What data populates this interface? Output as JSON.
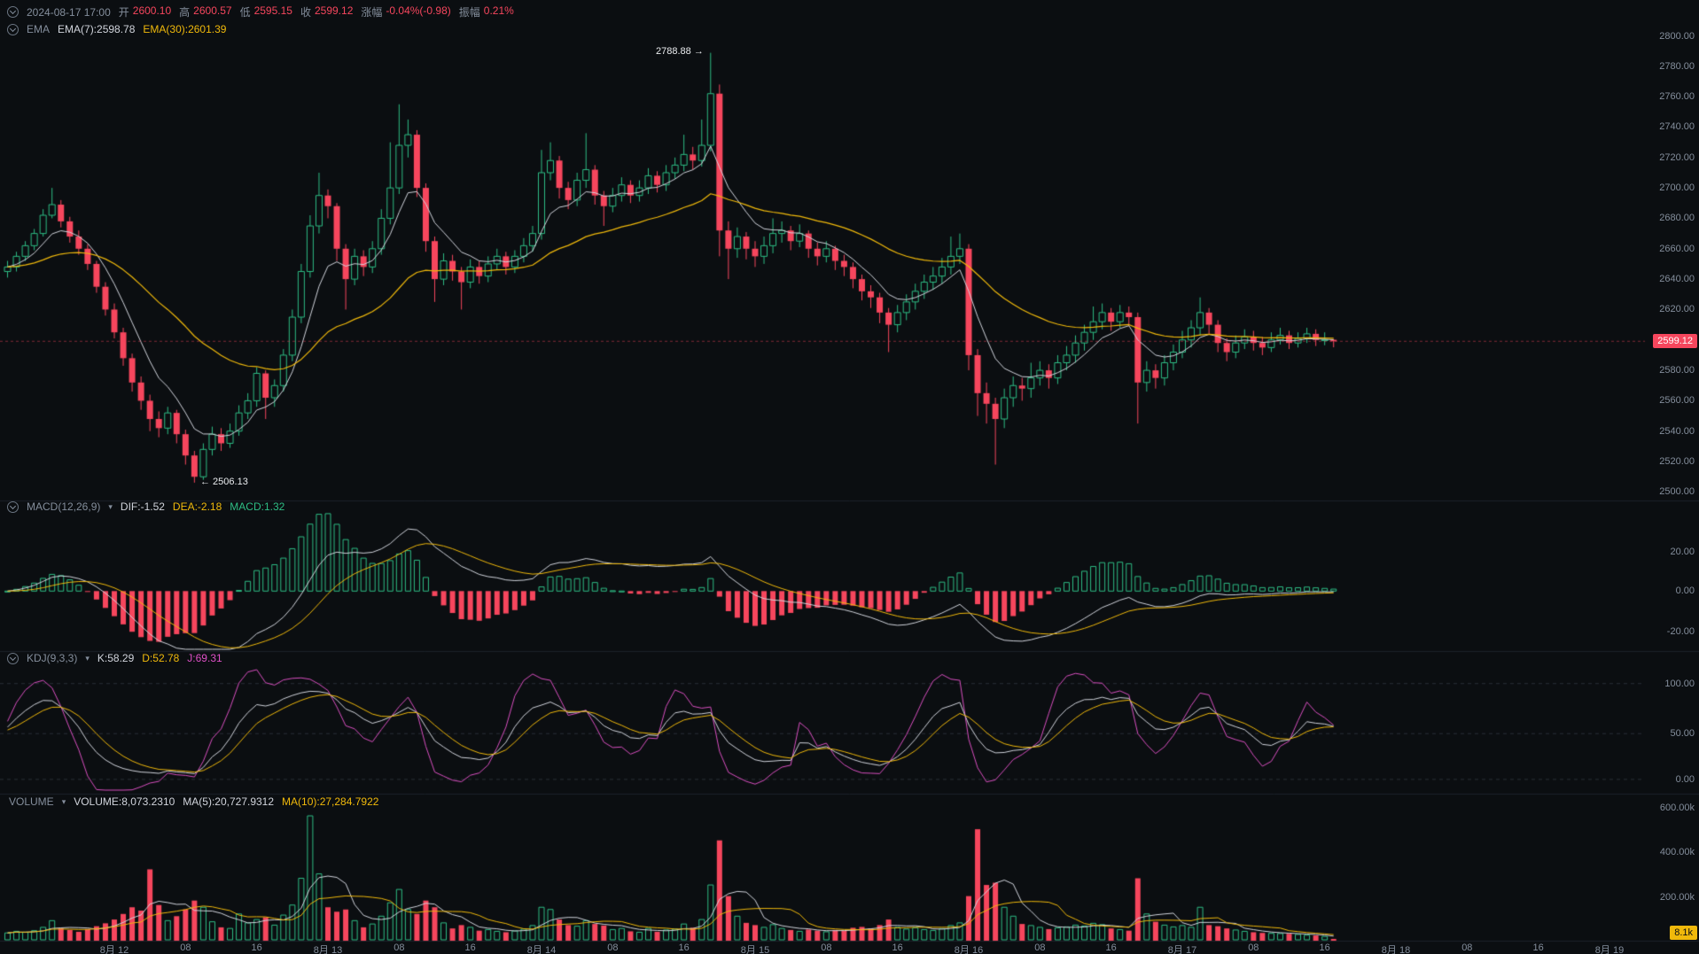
{
  "header": {
    "datetime": "2024-08-17 17:00",
    "open_label": "开",
    "open": "2600.10",
    "high_label": "高",
    "high": "2600.57",
    "low_label": "低",
    "low": "2595.15",
    "close_label": "收",
    "close": "2599.12",
    "change_label": "涨幅",
    "change": "-0.04%(-0.98)",
    "amplitude_label": "振幅",
    "amplitude": "0.21%",
    "ema_group_label": "EMA",
    "ema7": "EMA(7):2598.78",
    "ema30": "EMA(30):2601.39"
  },
  "panels": {
    "macd": {
      "name": "MACD(12,26,9)",
      "dif": "DIF:-1.52",
      "dea": "DEA:-2.18",
      "macd": "MACD:1.32"
    },
    "kdj": {
      "name": "KDJ(9,3,3)",
      "k": "K:58.29",
      "d": "D:52.78",
      "j": "J:69.31"
    },
    "volume": {
      "name": "VOLUME",
      "volume": "VOLUME:8,073.2310",
      "ma5": "MA(5):20,727.9312",
      "ma10": "MA(10):27,284.7922"
    }
  },
  "badges": {
    "last_price": "2599.12",
    "last_volume": "8.1k"
  },
  "annotations": {
    "high": "2788.88 →",
    "low": "← 2506.13"
  },
  "axes": {
    "price_labels": [
      "2800.00",
      "2780.00",
      "2760.00",
      "2740.00",
      "2720.00",
      "2700.00",
      "2680.00",
      "2660.00",
      "2640.00",
      "2620.00",
      "2600.00",
      "2580.00",
      "2560.00",
      "2540.00",
      "2520.00",
      "2500.00"
    ],
    "macd_labels": [
      "20.00",
      "0.00",
      "-20.00"
    ],
    "kdj_labels": [
      "100.00",
      "50.00",
      "0.00"
    ],
    "volume_labels": [
      "600.00k",
      "400.00k",
      "200.00k"
    ],
    "time_labels": [
      "8月 12",
      "08",
      "16",
      "8月 13",
      "08",
      "16",
      "8月 14",
      "08",
      "16",
      "8月 15",
      "08",
      "16",
      "8月 16",
      "08",
      "16",
      "8月 17",
      "08",
      "16",
      "8月 18",
      "08",
      "16",
      "8月 19"
    ]
  },
  "colors": {
    "background": "#0b0e11",
    "up": "#2ebd85",
    "down": "#f6465d",
    "ema7": "#d1d4dc",
    "ema30": "#f0b90b",
    "dif": "#d1d4dc",
    "dea": "#f0b90b",
    "k": "#d1d4dc",
    "d": "#f0b90b",
    "j": "#d94fc0",
    "vol_ma5": "#d1d4dc",
    "vol_ma10": "#f0b90b",
    "grid": "#2a3038",
    "divider": "#1c222a",
    "text_gray": "#848e9c",
    "badge_price_bg": "#f6465d",
    "badge_vol_bg": "#f0b90b"
  },
  "chart_data": {
    "type": "candlestick",
    "interval": "1h",
    "price_range": [
      2500,
      2800
    ],
    "macd_range": [
      -20,
      20
    ],
    "kdj_range": [
      0,
      100
    ],
    "volume_range": [
      0,
      600000
    ],
    "high_annotation": 2788.88,
    "low_annotation": 2506.13,
    "last_price": 2599.12,
    "indicators": {
      "ema": [
        7,
        30
      ],
      "macd": [
        12,
        26,
        9
      ],
      "kdj": [
        9,
        3,
        3
      ],
      "volume_ma": [
        5,
        10
      ]
    },
    "candles": [
      [
        2645,
        2652,
        2641,
        2648,
        35000
      ],
      [
        2648,
        2658,
        2645,
        2655,
        42000
      ],
      [
        2655,
        2665,
        2652,
        2662,
        38000
      ],
      [
        2662,
        2673,
        2659,
        2670,
        45000
      ],
      [
        2670,
        2686,
        2668,
        2682,
        60000
      ],
      [
        2682,
        2700,
        2680,
        2689,
        90000
      ],
      [
        2689,
        2692,
        2674,
        2678,
        55000
      ],
      [
        2678,
        2681,
        2664,
        2668,
        48000
      ],
      [
        2668,
        2672,
        2656,
        2660,
        40000
      ],
      [
        2660,
        2663,
        2646,
        2650,
        52000
      ],
      [
        2650,
        2652,
        2631,
        2635,
        65000
      ],
      [
        2635,
        2638,
        2616,
        2620,
        78000
      ],
      [
        2620,
        2624,
        2601,
        2605,
        95000
      ],
      [
        2605,
        2608,
        2583,
        2588,
        120000
      ],
      [
        2588,
        2591,
        2566,
        2572,
        150000
      ],
      [
        2572,
        2576,
        2554,
        2560,
        135000
      ],
      [
        2560,
        2564,
        2540,
        2548,
        320000
      ],
      [
        2548,
        2553,
        2536,
        2542,
        160000
      ],
      [
        2542,
        2556,
        2538,
        2552,
        90000
      ],
      [
        2552,
        2554,
        2532,
        2538,
        110000
      ],
      [
        2538,
        2541,
        2518,
        2524,
        140000
      ],
      [
        2524,
        2527,
        2506.13,
        2510,
        180000
      ],
      [
        2510,
        2532,
        2508,
        2528,
        150000
      ],
      [
        2528,
        2543,
        2524,
        2538,
        85000
      ],
      [
        2538,
        2542,
        2527,
        2532,
        60000
      ],
      [
        2532,
        2545,
        2529,
        2540,
        55000
      ],
      [
        2540,
        2557,
        2537,
        2552,
        120000
      ],
      [
        2552,
        2565,
        2548,
        2560,
        80000
      ],
      [
        2560,
        2582,
        2556,
        2578,
        95000
      ],
      [
        2578,
        2580,
        2548,
        2562,
        105000
      ],
      [
        2562,
        2574,
        2556,
        2570,
        70000
      ],
      [
        2570,
        2594,
        2566,
        2590,
        115000
      ],
      [
        2590,
        2620,
        2586,
        2615,
        160000
      ],
      [
        2615,
        2650,
        2611,
        2645,
        280000
      ],
      [
        2645,
        2682,
        2641,
        2675,
        560000
      ],
      [
        2675,
        2710,
        2670,
        2695,
        300000
      ],
      [
        2695,
        2699,
        2680,
        2688,
        150000
      ],
      [
        2688,
        2690,
        2652,
        2660,
        130000
      ],
      [
        2660,
        2663,
        2620,
        2640,
        140000
      ],
      [
        2640,
        2660,
        2636,
        2655,
        90000
      ],
      [
        2655,
        2659,
        2642,
        2648,
        60000
      ],
      [
        2648,
        2665,
        2644,
        2660,
        75000
      ],
      [
        2660,
        2686,
        2656,
        2680,
        110000
      ],
      [
        2680,
        2730,
        2676,
        2700,
        170000
      ],
      [
        2700,
        2755,
        2696,
        2728,
        230000
      ],
      [
        2728,
        2745,
        2720,
        2735,
        140000
      ],
      [
        2735,
        2738,
        2694,
        2700,
        120000
      ],
      [
        2700,
        2703,
        2658,
        2665,
        180000
      ],
      [
        2665,
        2668,
        2625,
        2640,
        150000
      ],
      [
        2640,
        2657,
        2636,
        2652,
        80000
      ],
      [
        2652,
        2656,
        2639,
        2645,
        55000
      ],
      [
        2645,
        2648,
        2620,
        2638,
        70000
      ],
      [
        2638,
        2653,
        2634,
        2648,
        60000
      ],
      [
        2648,
        2652,
        2637,
        2642,
        45000
      ],
      [
        2642,
        2655,
        2638,
        2650,
        50000
      ],
      [
        2650,
        2660,
        2646,
        2655,
        42000
      ],
      [
        2655,
        2658,
        2643,
        2648,
        38000
      ],
      [
        2648,
        2659,
        2644,
        2655,
        44000
      ],
      [
        2655,
        2667,
        2651,
        2662,
        52000
      ],
      [
        2662,
        2675,
        2658,
        2670,
        68000
      ],
      [
        2670,
        2725,
        2666,
        2710,
        150000
      ],
      [
        2710,
        2730,
        2705,
        2718,
        140000
      ],
      [
        2718,
        2721,
        2693,
        2700,
        95000
      ],
      [
        2700,
        2704,
        2686,
        2692,
        70000
      ],
      [
        2692,
        2710,
        2688,
        2705,
        65000
      ],
      [
        2705,
        2736,
        2700,
        2712,
        90000
      ],
      [
        2712,
        2715,
        2689,
        2695,
        75000
      ],
      [
        2695,
        2698,
        2675,
        2688,
        68000
      ],
      [
        2688,
        2700,
        2684,
        2695,
        50000
      ],
      [
        2695,
        2707,
        2691,
        2702,
        55000
      ],
      [
        2702,
        2705,
        2690,
        2695,
        42000
      ],
      [
        2695,
        2705,
        2691,
        2700,
        38000
      ],
      [
        2700,
        2713,
        2696,
        2708,
        55000
      ],
      [
        2708,
        2711,
        2697,
        2702,
        40000
      ],
      [
        2702,
        2715,
        2698,
        2710,
        48000
      ],
      [
        2710,
        2720,
        2706,
        2715,
        52000
      ],
      [
        2715,
        2735,
        2711,
        2722,
        75000
      ],
      [
        2722,
        2727,
        2712,
        2718,
        58000
      ],
      [
        2718,
        2745,
        2714,
        2728,
        95000
      ],
      [
        2728,
        2788.88,
        2724,
        2762,
        250000
      ],
      [
        2762,
        2768,
        2655,
        2672,
        450000
      ],
      [
        2672,
        2678,
        2640,
        2660,
        200000
      ],
      [
        2660,
        2674,
        2654,
        2668,
        110000
      ],
      [
        2668,
        2671,
        2653,
        2660,
        80000
      ],
      [
        2660,
        2665,
        2648,
        2655,
        70000
      ],
      [
        2655,
        2668,
        2650,
        2662,
        60000
      ],
      [
        2662,
        2680,
        2657,
        2670,
        72000
      ],
      [
        2670,
        2678,
        2664,
        2672,
        55000
      ],
      [
        2672,
        2675,
        2659,
        2665,
        48000
      ],
      [
        2665,
        2676,
        2661,
        2670,
        42000
      ],
      [
        2670,
        2672,
        2654,
        2660,
        50000
      ],
      [
        2660,
        2664,
        2649,
        2655,
        45000
      ],
      [
        2655,
        2665,
        2651,
        2660,
        40000
      ],
      [
        2660,
        2662,
        2646,
        2652,
        48000
      ],
      [
        2652,
        2656,
        2642,
        2648,
        44000
      ],
      [
        2648,
        2651,
        2634,
        2640,
        58000
      ],
      [
        2640,
        2643,
        2626,
        2632,
        62000
      ],
      [
        2632,
        2636,
        2621,
        2628,
        55000
      ],
      [
        2628,
        2631,
        2611,
        2618,
        70000
      ],
      [
        2618,
        2621,
        2592,
        2610,
        95000
      ],
      [
        2610,
        2623,
        2605,
        2618,
        60000
      ],
      [
        2618,
        2630,
        2613,
        2625,
        52000
      ],
      [
        2625,
        2637,
        2620,
        2632,
        58000
      ],
      [
        2632,
        2643,
        2627,
        2638,
        50000
      ],
      [
        2638,
        2648,
        2633,
        2642,
        46000
      ],
      [
        2642,
        2654,
        2637,
        2648,
        54000
      ],
      [
        2648,
        2668,
        2643,
        2655,
        68000
      ],
      [
        2655,
        2670,
        2650,
        2660,
        80000
      ],
      [
        2660,
        2663,
        2580,
        2590,
        200000
      ],
      [
        2590,
        2594,
        2550,
        2565,
        500000
      ],
      [
        2565,
        2572,
        2545,
        2558,
        250000
      ],
      [
        2558,
        2562,
        2518,
        2548,
        260000
      ],
      [
        2548,
        2568,
        2542,
        2562,
        150000
      ],
      [
        2562,
        2576,
        2556,
        2570,
        110000
      ],
      [
        2570,
        2575,
        2560,
        2568,
        75000
      ],
      [
        2568,
        2585,
        2562,
        2575,
        68000
      ],
      [
        2575,
        2586,
        2570,
        2580,
        60000
      ],
      [
        2580,
        2584,
        2568,
        2575,
        52000
      ],
      [
        2575,
        2590,
        2571,
        2585,
        58000
      ],
      [
        2585,
        2596,
        2580,
        2590,
        62000
      ],
      [
        2590,
        2603,
        2585,
        2598,
        70000
      ],
      [
        2598,
        2610,
        2593,
        2605,
        66000
      ],
      [
        2605,
        2622,
        2600,
        2612,
        78000
      ],
      [
        2612,
        2624,
        2607,
        2618,
        72000
      ],
      [
        2618,
        2621,
        2606,
        2612,
        55000
      ],
      [
        2612,
        2623,
        2608,
        2618,
        50000
      ],
      [
        2618,
        2622,
        2609,
        2615,
        45000
      ],
      [
        2615,
        2618,
        2545,
        2572,
        280000
      ],
      [
        2572,
        2586,
        2566,
        2580,
        120000
      ],
      [
        2580,
        2584,
        2568,
        2575,
        85000
      ],
      [
        2575,
        2590,
        2570,
        2585,
        70000
      ],
      [
        2585,
        2597,
        2580,
        2592,
        62000
      ],
      [
        2592,
        2606,
        2588,
        2600,
        68000
      ],
      [
        2600,
        2613,
        2595,
        2608,
        60000
      ],
      [
        2608,
        2628,
        2603,
        2618,
        150000
      ],
      [
        2618,
        2621,
        2604,
        2610,
        70000
      ],
      [
        2610,
        2613,
        2592,
        2598,
        65000
      ],
      [
        2598,
        2601,
        2586,
        2592,
        55000
      ],
      [
        2592,
        2603,
        2588,
        2598,
        48000
      ],
      [
        2598,
        2607,
        2594,
        2602,
        42000
      ],
      [
        2602,
        2606,
        2593,
        2598,
        38000
      ],
      [
        2598,
        2602,
        2590,
        2595,
        35000
      ],
      [
        2595,
        2605,
        2592,
        2600,
        33000
      ],
      [
        2600,
        2608,
        2597,
        2603,
        32275
      ],
      [
        2603,
        2606,
        2594,
        2598,
        31000
      ],
      [
        2598,
        2605,
        2595,
        2601,
        28000
      ],
      [
        2601,
        2608,
        2598,
        2604,
        25000
      ],
      [
        2604,
        2607,
        2596,
        2600,
        23500
      ],
      [
        2600,
        2605,
        2596.5,
        2600.1,
        19000
      ],
      [
        2600.1,
        2600.57,
        2595.15,
        2599.12,
        8073.231
      ]
    ]
  }
}
